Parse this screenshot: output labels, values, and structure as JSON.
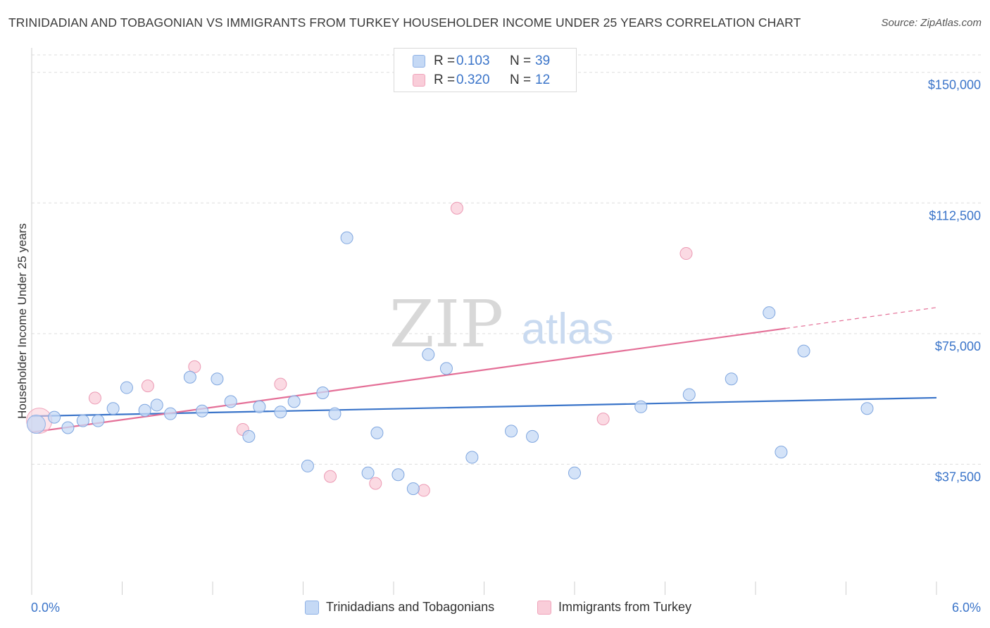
{
  "title": "TRINIDADIAN AND TOBAGONIAN VS IMMIGRANTS FROM TURKEY HOUSEHOLDER INCOME UNDER 25 YEARS CORRELATION CHART",
  "source": "Source: ZipAtlas.com",
  "watermark": {
    "zip": "ZIP",
    "atlas": "atlas"
  },
  "legend": {
    "blue": {
      "r_label": "R =",
      "r_value": "0.103",
      "n_label": "N =",
      "n_value": "39"
    },
    "pink": {
      "r_label": "R =",
      "r_value": "0.320",
      "n_label": "N =",
      "n_value": "12"
    }
  },
  "bottom_legend": {
    "blue": "Trinidadians and Tobagonians",
    "pink": "Immigrants from Turkey"
  },
  "colors": {
    "blue": "#3a74c9",
    "blue_fill": "#c5d9f5",
    "pink": "#e46f97",
    "pink_fill": "#f9cdd9",
    "grid": "#dddddd",
    "tick_label": "#3a74c9"
  },
  "chart_data": {
    "type": "scatter",
    "title": "TRINIDADIAN AND TOBAGONIAN VS IMMIGRANTS FROM TURKEY HOUSEHOLDER INCOME UNDER 25 YEARS CORRELATION CHART",
    "xlabel": "",
    "ylabel": "Householder Income Under 25 years",
    "xlim": [
      0,
      6
    ],
    "ylim": [
      0,
      155000
    ],
    "x_tick_labels": [
      "0.0%",
      "6.0%"
    ],
    "y_ticks": [
      37500,
      75000,
      112500,
      150000
    ],
    "y_tick_labels": [
      "$37,500",
      "$75,000",
      "$112,500",
      "$150,000"
    ],
    "grid": true,
    "series": [
      {
        "name": "Trinidadians and Tobagonians",
        "color": "#3a74c9",
        "points": [
          [
            0.03,
            49000
          ],
          [
            0.15,
            51000
          ],
          [
            0.24,
            48000
          ],
          [
            0.34,
            50000
          ],
          [
            0.44,
            50000
          ],
          [
            0.54,
            53500
          ],
          [
            0.63,
            59500
          ],
          [
            0.75,
            53000
          ],
          [
            0.83,
            54500
          ],
          [
            0.92,
            52000
          ],
          [
            1.05,
            62500
          ],
          [
            1.13,
            52800
          ],
          [
            1.23,
            62000
          ],
          [
            1.32,
            55500
          ],
          [
            1.44,
            45500
          ],
          [
            1.51,
            54000
          ],
          [
            1.65,
            52500
          ],
          [
            1.74,
            55500
          ],
          [
            1.83,
            37000
          ],
          [
            1.93,
            58000
          ],
          [
            2.01,
            52000
          ],
          [
            2.09,
            102500
          ],
          [
            2.23,
            35000
          ],
          [
            2.29,
            46500
          ],
          [
            2.43,
            34500
          ],
          [
            2.53,
            30500
          ],
          [
            2.63,
            69000
          ],
          [
            2.75,
            65000
          ],
          [
            2.92,
            39500
          ],
          [
            3.18,
            47000
          ],
          [
            3.32,
            45500
          ],
          [
            3.6,
            35000
          ],
          [
            4.04,
            54000
          ],
          [
            4.36,
            57500
          ],
          [
            4.64,
            62000
          ],
          [
            4.89,
            81000
          ],
          [
            4.97,
            41000
          ],
          [
            5.12,
            70000
          ],
          [
            5.54,
            53500
          ]
        ],
        "trend": {
          "x": [
            0.0,
            6.0
          ],
          "y": [
            51300,
            56600
          ]
        }
      },
      {
        "name": "Immigrants from Turkey",
        "color": "#e46f97",
        "points": [
          [
            0.05,
            50000
          ],
          [
            0.42,
            56500
          ],
          [
            0.77,
            60000
          ],
          [
            1.08,
            65500
          ],
          [
            1.4,
            47500
          ],
          [
            1.65,
            60500
          ],
          [
            1.98,
            34000
          ],
          [
            2.28,
            32000
          ],
          [
            2.6,
            30000
          ],
          [
            2.82,
            111000
          ],
          [
            3.79,
            50500
          ],
          [
            4.34,
            98000
          ]
        ],
        "trend": {
          "x": [
            0.0,
            5.0
          ],
          "y": [
            46700,
            76500
          ]
        },
        "trend_dashed": {
          "x": [
            5.0,
            6.0
          ],
          "y": [
            76500,
            82500
          ]
        }
      }
    ]
  }
}
